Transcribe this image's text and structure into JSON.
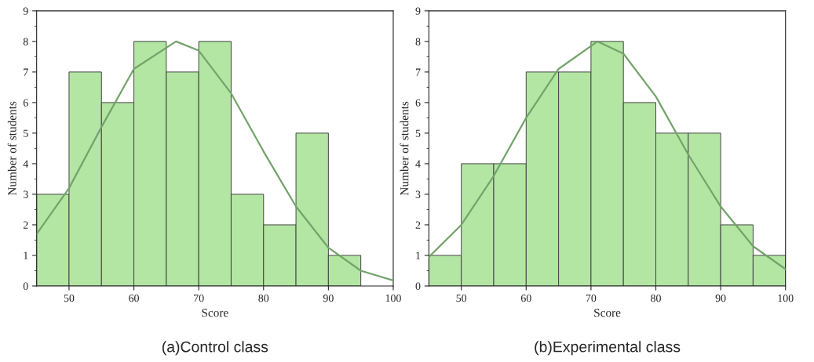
{
  "chart_data": [
    {
      "type": "histogram",
      "xlabel": "Score",
      "ylabel": "Number of students",
      "annotations": [
        "(a)Control class"
      ],
      "bins": [
        45,
        50,
        55,
        60,
        65,
        70,
        75,
        80,
        85,
        90,
        95
      ],
      "values": [
        3,
        7,
        6,
        8,
        7,
        8,
        3,
        2,
        5,
        1
      ],
      "color": "#b3e6a3",
      "xlim": [
        45,
        100
      ],
      "xticks": [
        50,
        60,
        70,
        80,
        90,
        100
      ],
      "ylim": [
        0,
        9
      ],
      "yticks": [
        0,
        1,
        2,
        3,
        4,
        5,
        6,
        7,
        8,
        9
      ],
      "grid": false,
      "legend": false,
      "series": [
        {
          "type": "line",
          "x": [
            45,
            50,
            55,
            60,
            66.5,
            70,
            75,
            80,
            85,
            90,
            95,
            100
          ],
          "values": [
            1.7,
            3.2,
            5.2,
            7.1,
            8,
            7.7,
            6.3,
            4.4,
            2.6,
            1.25,
            0.5,
            0.18
          ],
          "color": "#73a36a"
        }
      ]
    },
    {
      "type": "histogram",
      "xlabel": "Score",
      "ylabel": "Number of students",
      "annotations": [
        "(b)Experimental class"
      ],
      "bins": [
        45,
        50,
        55,
        60,
        65,
        70,
        75,
        80,
        85,
        90,
        95,
        100
      ],
      "values": [
        1,
        4,
        4,
        7,
        7,
        8,
        6,
        5,
        5,
        2,
        1
      ],
      "color": "#b3e6a3",
      "xlim": [
        45,
        100
      ],
      "xticks": [
        50,
        60,
        70,
        80,
        90,
        100
      ],
      "ylim": [
        0,
        9
      ],
      "yticks": [
        0,
        1,
        2,
        3,
        4,
        5,
        6,
        7,
        8,
        9
      ],
      "grid": false,
      "legend": false,
      "series": [
        {
          "type": "line",
          "x": [
            45,
            50,
            55,
            60,
            65,
            71,
            75,
            80,
            85,
            90,
            95,
            100
          ],
          "values": [
            0.95,
            2.0,
            3.6,
            5.5,
            7.1,
            8,
            7.6,
            6.2,
            4.3,
            2.6,
            1.3,
            0.55
          ],
          "color": "#73a36a"
        }
      ]
    }
  ]
}
